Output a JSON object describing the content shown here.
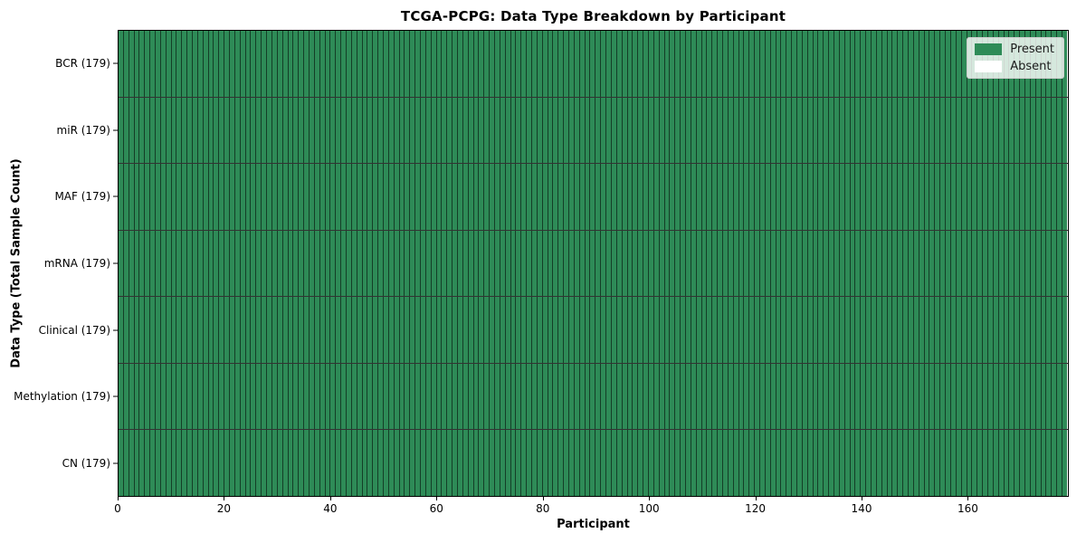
{
  "chart_data": {
    "type": "heatmap",
    "title": "TCGA-PCPG: Data Type Breakdown by Participant",
    "xlabel": "Participant",
    "ylabel": "Data Type (Total Sample Count)",
    "n_participants": 179,
    "x_range": [
      0,
      179
    ],
    "x_ticks": [
      0,
      20,
      40,
      60,
      80,
      100,
      120,
      140,
      160
    ],
    "rows": [
      {
        "label": "BCR (179)",
        "data_type": "BCR",
        "total_sample_count": 179,
        "present": 179,
        "absent": 0
      },
      {
        "label": "miR (179)",
        "data_type": "miR",
        "total_sample_count": 179,
        "present": 179,
        "absent": 0
      },
      {
        "label": "MAF (179)",
        "data_type": "MAF",
        "total_sample_count": 179,
        "present": 179,
        "absent": 0
      },
      {
        "label": "mRNA (179)",
        "data_type": "mRNA",
        "total_sample_count": 179,
        "present": 179,
        "absent": 0
      },
      {
        "label": "Clinical (179)",
        "data_type": "Clinical",
        "total_sample_count": 179,
        "present": 179,
        "absent": 0
      },
      {
        "label": "Methylation (179)",
        "data_type": "Methylation",
        "total_sample_count": 179,
        "present": 179,
        "absent": 0
      },
      {
        "label": "CN (179)",
        "data_type": "CN",
        "total_sample_count": 179,
        "present": 179,
        "absent": 0
      }
    ],
    "legend": {
      "position": "upper right",
      "entries": [
        {
          "label": "Present",
          "color": "#2e8b57"
        },
        {
          "label": "Absent",
          "color": "#ffffff"
        }
      ]
    },
    "colors": {
      "present": "#2e8b57",
      "absent": "#ffffff",
      "cell_edge": "rgba(0,0,0,0.55)",
      "row_separator": "rgba(0,0,0,0.8)",
      "frame": "#000000"
    }
  }
}
